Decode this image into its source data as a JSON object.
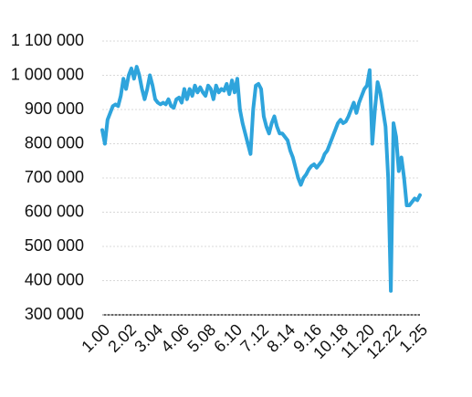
{
  "chart_data": {
    "type": "line",
    "categories": [
      "1.00",
      null,
      null,
      null,
      null,
      null,
      null,
      null,
      null,
      null,
      "2.02",
      null,
      null,
      null,
      null,
      null,
      null,
      null,
      null,
      null,
      "3.04",
      null,
      null,
      null,
      null,
      null,
      null,
      null,
      null,
      null,
      "4.06",
      null,
      null,
      null,
      null,
      null,
      null,
      null,
      null,
      null,
      "5.08",
      null,
      null,
      null,
      null,
      null,
      null,
      null,
      null,
      null,
      "6.10",
      null,
      null,
      null,
      null,
      null,
      null,
      null,
      null,
      null,
      "7.12",
      null,
      null,
      null,
      null,
      null,
      null,
      null,
      null,
      null,
      "8.14",
      null,
      null,
      null,
      null,
      null,
      null,
      null,
      null,
      null,
      "9.16",
      null,
      null,
      null,
      null,
      null,
      null,
      null,
      null,
      null,
      "10.18",
      null,
      null,
      null,
      null,
      null,
      null,
      null,
      null,
      null,
      "11.20",
      null,
      null,
      null,
      null,
      null,
      null,
      null,
      null,
      null,
      "12.22",
      null,
      null,
      null,
      null,
      null,
      null,
      null,
      null,
      null,
      "1.25"
    ],
    "values": [
      840000,
      800000,
      870000,
      890000,
      910000,
      915000,
      910000,
      940000,
      990000,
      960000,
      1000000,
      1020000,
      990000,
      1025000,
      1000000,
      960000,
      930000,
      960000,
      1000000,
      970000,
      930000,
      920000,
      915000,
      920000,
      915000,
      930000,
      910000,
      905000,
      930000,
      935000,
      920000,
      960000,
      930000,
      960000,
      940000,
      970000,
      950000,
      965000,
      950000,
      940000,
      970000,
      960000,
      930000,
      970000,
      950000,
      960000,
      955000,
      975000,
      945000,
      985000,
      950000,
      990000,
      900000,
      860000,
      830000,
      800000,
      770000,
      900000,
      970000,
      975000,
      960000,
      880000,
      850000,
      830000,
      860000,
      880000,
      850000,
      830000,
      830000,
      820000,
      810000,
      780000,
      760000,
      730000,
      700000,
      680000,
      700000,
      710000,
      725000,
      735000,
      740000,
      730000,
      740000,
      750000,
      770000,
      780000,
      800000,
      820000,
      840000,
      860000,
      870000,
      860000,
      865000,
      880000,
      900000,
      920000,
      890000,
      920000,
      940000,
      960000,
      970000,
      1015000,
      800000,
      900000,
      980000,
      950000,
      900000,
      850000,
      700000,
      370000,
      860000,
      820000,
      720000,
      760000,
      700000,
      620000,
      620000,
      630000,
      640000,
      635000,
      650000
    ],
    "color": "#2ea4dc",
    "ylim": [
      300000,
      1100000
    ],
    "yticks": [
      {
        "value": 300000,
        "label": "300 000"
      },
      {
        "value": 400000,
        "label": "400 000"
      },
      {
        "value": 500000,
        "label": "500 000"
      },
      {
        "value": 600000,
        "label": "600 000"
      },
      {
        "value": 700000,
        "label": "700 000"
      },
      {
        "value": 800000,
        "label": "800 000"
      },
      {
        "value": 900000,
        "label": "900 000"
      },
      {
        "value": 1000000,
        "label": "1 000 000"
      },
      {
        "value": 1100000,
        "label": "1 100 000"
      }
    ],
    "grid": true
  }
}
